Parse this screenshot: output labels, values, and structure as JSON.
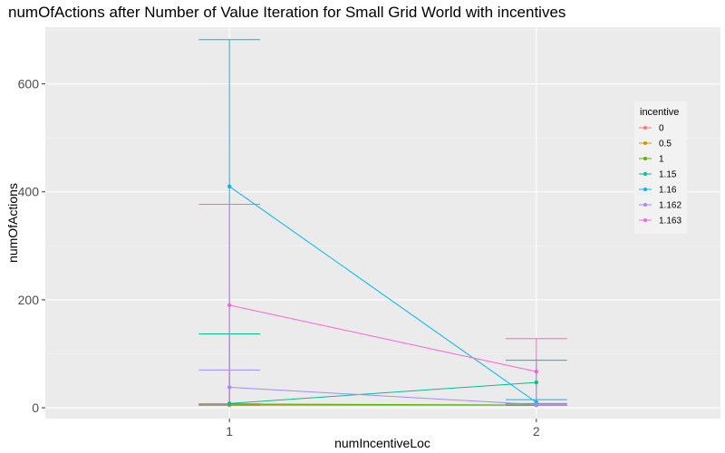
{
  "chart_data": {
    "type": "line",
    "title": "numOfActions after Number of Value Iteration for Small Grid World with incentives",
    "xlabel": "numIncentiveLoc",
    "ylabel": "numOfActions",
    "categories": [
      "1",
      "2"
    ],
    "xlim": [
      0.4,
      2.6
    ],
    "ylim": [
      -20,
      705
    ],
    "yticks": [
      0,
      200,
      400,
      600
    ],
    "grid": true,
    "legend": {
      "title": "incentive",
      "position": "right"
    },
    "series": [
      {
        "name": "0",
        "color": "#F8766D",
        "values": [
          5,
          5
        ],
        "error_low": [
          5,
          5
        ],
        "error_high": [
          5,
          5
        ]
      },
      {
        "name": "0.5",
        "color": "#C49A00",
        "values": [
          5,
          5
        ],
        "error_low": [
          5,
          5
        ],
        "error_high": [
          5,
          5
        ]
      },
      {
        "name": "1",
        "color": "#53B400",
        "values": [
          7,
          5
        ],
        "error_low": [
          7,
          5
        ],
        "error_high": [
          7,
          5
        ]
      },
      {
        "name": "1.15",
        "color": "#00C094",
        "values": [
          8,
          47
        ],
        "error_low": [
          5,
          8
        ],
        "error_high": [
          137,
          88
        ]
      },
      {
        "name": "1.16",
        "color": "#00B6EB",
        "values": [
          410,
          10
        ],
        "error_low": [
          5,
          5
        ],
        "error_high": [
          682,
          15
        ]
      },
      {
        "name": "1.162",
        "color": "#A58AFF",
        "values": [
          38,
          6
        ],
        "error_low": [
          5,
          5
        ],
        "error_high": [
          70,
          7
        ]
      },
      {
        "name": "1.163",
        "color": "#FB61D7",
        "values": [
          190,
          67
        ],
        "error_low": [
          5,
          5
        ],
        "error_high": [
          377,
          128
        ]
      }
    ]
  }
}
